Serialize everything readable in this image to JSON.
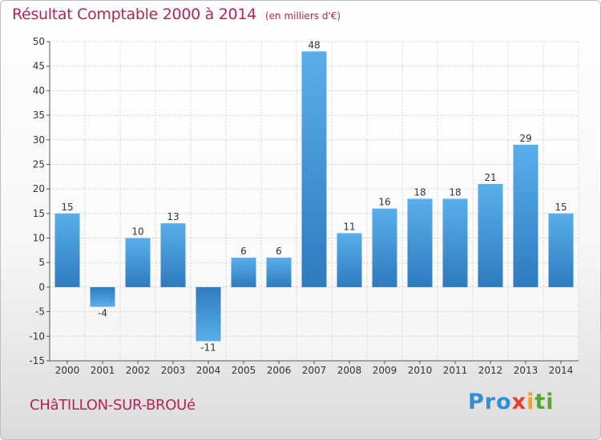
{
  "header": {
    "title": "Résultat Comptable 2000 à 2014",
    "unit": "(en milliers d'€)"
  },
  "commune": "CHâTILLON-SUR-BROUé",
  "logo": {
    "text": "Proxiti",
    "parts": [
      "Pro",
      "x",
      "i",
      "ti"
    ]
  },
  "colors": {
    "title": "#b3245a",
    "bar": "#4a9fdf",
    "bar_dark": "#2e7bbf",
    "axis_text": "#333333"
  },
  "chart_data": {
    "type": "bar",
    "title": "Résultat Comptable 2000 à 2014",
    "xlabel": "",
    "ylabel": "",
    "categories": [
      "2000",
      "2001",
      "2002",
      "2003",
      "2004",
      "2005",
      "2006",
      "2007",
      "2008",
      "2009",
      "2010",
      "2011",
      "2012",
      "2013",
      "2014"
    ],
    "values": [
      15,
      -4,
      10,
      13,
      -11,
      6,
      6,
      48,
      11,
      16,
      18,
      18,
      21,
      29,
      15
    ],
    "labels": [
      "15",
      "-4",
      "10",
      "13",
      "-11",
      "6",
      "6",
      "48",
      "11",
      "16",
      "18",
      "18",
      "21",
      "29",
      "15"
    ],
    "ylim": [
      -15,
      50
    ],
    "yticks": [
      50,
      45,
      40,
      35,
      30,
      25,
      20,
      15,
      10,
      5,
      0,
      -5,
      -10,
      -15
    ],
    "ytick_labels": [
      "50",
      "45",
      "40",
      "35",
      "30",
      "25",
      "20",
      "15",
      "10",
      "5",
      "0",
      "-5",
      "-10",
      "-15"
    ],
    "grid": true
  }
}
